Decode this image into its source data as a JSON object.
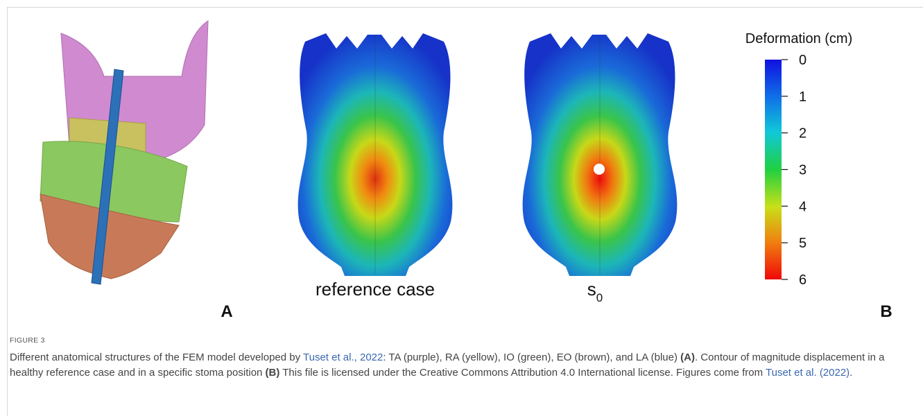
{
  "figure": {
    "panel_a": {
      "label": "A"
    },
    "panel_b": {
      "label": "B",
      "images": [
        {
          "label": "reference case"
        },
        {
          "label": "s",
          "subscript": "0"
        }
      ],
      "colorbar": {
        "title": "Deformation (cm)",
        "lim": [
          0,
          6
        ],
        "ticks": [
          0,
          1,
          2,
          3,
          4,
          5,
          6
        ]
      }
    }
  },
  "caption": {
    "figure_label": "FIGURE 3",
    "segments": [
      {
        "text": "Different anatomical structures of the FEM model developed by "
      },
      {
        "text": "Tuset et al., 2022",
        "link": true
      },
      {
        "text": ": TA (purple), RA (yellow), IO (green), EO (brown), and LA (blue) "
      },
      {
        "text": "(A)",
        "bold": true
      },
      {
        "text": ". Contour of magnitude displacement in a healthy reference case and in a specific stoma position "
      },
      {
        "text": "(B)",
        "bold": true
      },
      {
        "text": " This file is licensed under the Creative Commons Attribution 4.0 International license. Figures come from "
      },
      {
        "text": "Tuset et al. (2022)",
        "link": true
      },
      {
        "text": "."
      }
    ]
  }
}
